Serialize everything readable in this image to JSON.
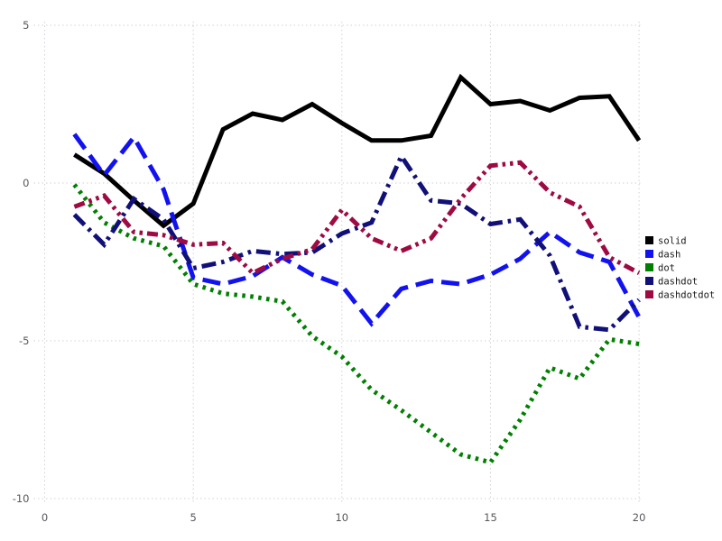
{
  "chart_data": {
    "type": "line",
    "title": "",
    "xlabel": "",
    "ylabel": "",
    "x": [
      1,
      2,
      3,
      4,
      5,
      6,
      7,
      8,
      9,
      10,
      11,
      12,
      13,
      14,
      15,
      16,
      17,
      18,
      19,
      20
    ],
    "series": [
      {
        "name": "solid",
        "color": "#000000",
        "linestyle": "solid",
        "values": [
          0.9,
          0.3,
          -0.55,
          -1.35,
          -0.65,
          1.7,
          2.2,
          2.0,
          2.5,
          1.9,
          1.35,
          1.35,
          1.5,
          3.35,
          2.5,
          2.6,
          2.3,
          2.7,
          2.75,
          1.35
        ]
      },
      {
        "name": "dash",
        "color": "#1212f0",
        "linestyle": "dash",
        "values": [
          1.55,
          0.25,
          1.45,
          -0.2,
          -3.0,
          -3.2,
          -2.95,
          -2.35,
          -2.9,
          -3.25,
          -4.45,
          -3.35,
          -3.1,
          -3.2,
          -2.9,
          -2.4,
          -1.55,
          -2.2,
          -2.5,
          -4.25
        ]
      },
      {
        "name": "dot",
        "color": "#008000",
        "linestyle": "dot",
        "values": [
          -0.05,
          -1.25,
          -1.75,
          -2.0,
          -3.2,
          -3.5,
          -3.6,
          -3.75,
          -4.85,
          -5.5,
          -6.55,
          -7.2,
          -7.9,
          -8.6,
          -8.85,
          -7.5,
          -5.85,
          -6.2,
          -4.95,
          -5.1
        ]
      },
      {
        "name": "dashdot",
        "color": "#101078",
        "linestyle": "dashdot",
        "values": [
          -1.0,
          -1.95,
          -0.5,
          -1.15,
          -2.7,
          -2.5,
          -2.15,
          -2.25,
          -2.2,
          -1.6,
          -1.25,
          0.85,
          -0.55,
          -0.65,
          -1.3,
          -1.15,
          -2.3,
          -4.55,
          -4.65,
          -3.7
        ]
      },
      {
        "name": "dashdotdot",
        "color": "#9e0a42",
        "linestyle": "dashdotdot",
        "values": [
          -0.75,
          -0.4,
          -1.55,
          -1.65,
          -1.95,
          -1.9,
          -2.85,
          -2.4,
          -2.1,
          -0.85,
          -1.75,
          -2.15,
          -1.75,
          -0.5,
          0.55,
          0.65,
          -0.3,
          -0.75,
          -2.35,
          -2.85
        ]
      }
    ],
    "xlim": [
      0,
      20
    ],
    "ylim": [
      -10,
      5
    ],
    "xticks": [
      0,
      5,
      10,
      15,
      20
    ],
    "yticks": [
      5,
      0,
      -5,
      -10
    ],
    "x_tick_labels": [
      "0",
      "5",
      "10",
      "15",
      "20"
    ],
    "y_tick_labels": [
      "5",
      "0",
      "-5",
      "-10"
    ],
    "grid": true,
    "grid_style": "dotted",
    "grid_color": "#d2d2da",
    "legend_position": "right",
    "legend_labels": [
      "solid",
      "dash",
      "dot",
      "dashdot",
      "dashdotdot"
    ]
  }
}
